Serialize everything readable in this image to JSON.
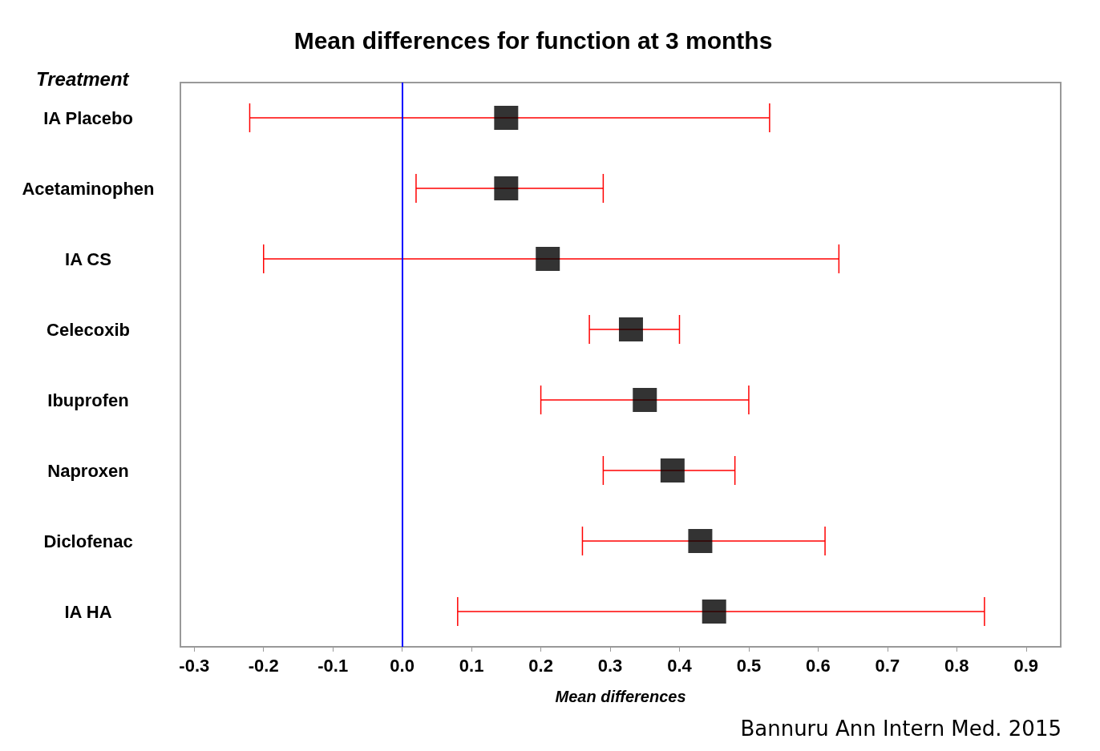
{
  "chart_data": {
    "type": "scatter",
    "orientation": "horizontal",
    "title": "Mean differences for function at 3 months",
    "xlabel": "Mean differences",
    "ylabel": "Treatment",
    "categories": [
      "IA Placebo",
      "Acetaminophen",
      "IA CS",
      "Celecoxib",
      "Ibuprofen",
      "Naproxen",
      "Diclofenac",
      "IA HA"
    ],
    "series": [
      {
        "color": "#000000",
        "values": [
          0.15,
          0.15,
          0.21,
          0.33,
          0.35,
          0.39,
          0.43,
          0.45
        ],
        "errors": [
          [
            -0.22,
            0.53
          ],
          [
            0.02,
            0.29
          ],
          [
            -0.2,
            0.63
          ],
          [
            0.27,
            0.4
          ],
          [
            0.2,
            0.5
          ],
          [
            0.29,
            0.48
          ],
          [
            0.26,
            0.61
          ],
          [
            0.08,
            0.84
          ]
        ]
      }
    ],
    "xlim": [
      -0.32,
      0.95
    ],
    "xticks": [
      -0.3,
      -0.2,
      -0.1,
      {
        "value": 0,
        "label": "0.0"
      },
      0.1,
      0.2,
      0.3,
      0.4,
      0.5,
      0.6,
      0.7,
      0.8,
      0.9
    ],
    "ref_lines": [
      {
        "axis": "x",
        "value": 0,
        "color": "#0000ff"
      }
    ],
    "marker": "square",
    "grid": false,
    "annotations": [
      "Bannuru Ann Intern Med. 2015"
    ]
  }
}
